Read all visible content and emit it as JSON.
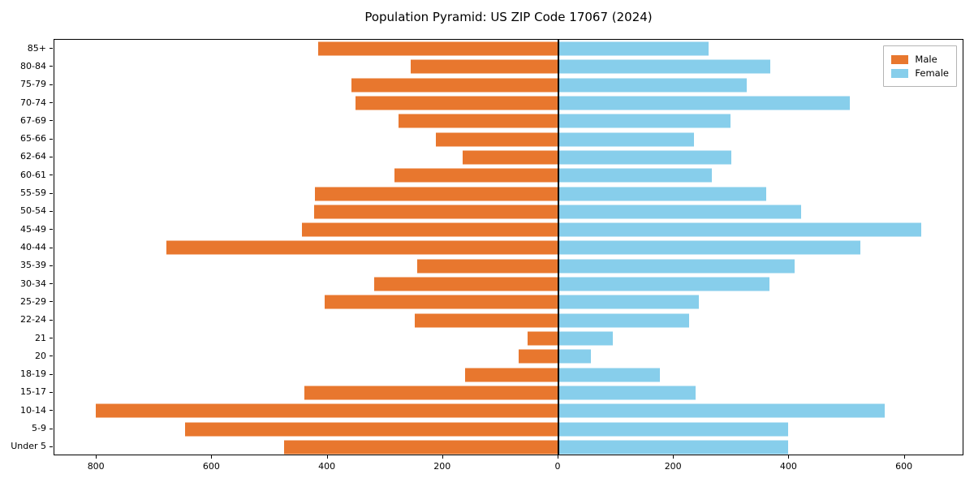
{
  "title": "Population Pyramid: US ZIP Code 17067 (2024)",
  "legend": {
    "male_label": "Male",
    "female_label": "Female"
  },
  "colors": {
    "male": "#e8772e",
    "female": "#87ceeb",
    "axis": "#000000",
    "legend_border": "#b4b4b4"
  },
  "chart_data": {
    "type": "bar",
    "orientation": "horizontal-pyramid",
    "title": "Population Pyramid: US ZIP Code 17067 (2024)",
    "categories": [
      "85+",
      "80-84",
      "75-79",
      "70-74",
      "67-69",
      "65-66",
      "62-64",
      "60-61",
      "55-59",
      "50-54",
      "45-49",
      "40-44",
      "35-39",
      "30-34",
      "25-29",
      "22-24",
      "21",
      "20",
      "18-19",
      "15-17",
      "10-14",
      "5-9",
      "Under 5"
    ],
    "series": [
      {
        "name": "Male",
        "side": "left",
        "values": [
          416,
          256,
          358,
          351,
          277,
          213,
          166,
          284,
          422,
          423,
          445,
          679,
          245,
          319,
          405,
          249,
          54,
          69,
          162,
          440,
          802,
          647,
          475
        ]
      },
      {
        "name": "Female",
        "side": "right",
        "values": [
          260,
          367,
          326,
          505,
          298,
          235,
          300,
          266,
          360,
          421,
          628,
          523,
          409,
          365,
          243,
          226,
          94,
          56,
          176,
          238,
          565,
          398,
          398
        ]
      }
    ],
    "x_tick_labels": [
      "800",
      "600",
      "400",
      "200",
      "0",
      "200",
      "400",
      "600"
    ],
    "x_tick_values": [
      -800,
      -600,
      -400,
      -200,
      0,
      200,
      400,
      600
    ],
    "xlim": [
      -873,
      703
    ],
    "grid": false,
    "legend_position": "upper right",
    "zero_axis_line": true
  }
}
